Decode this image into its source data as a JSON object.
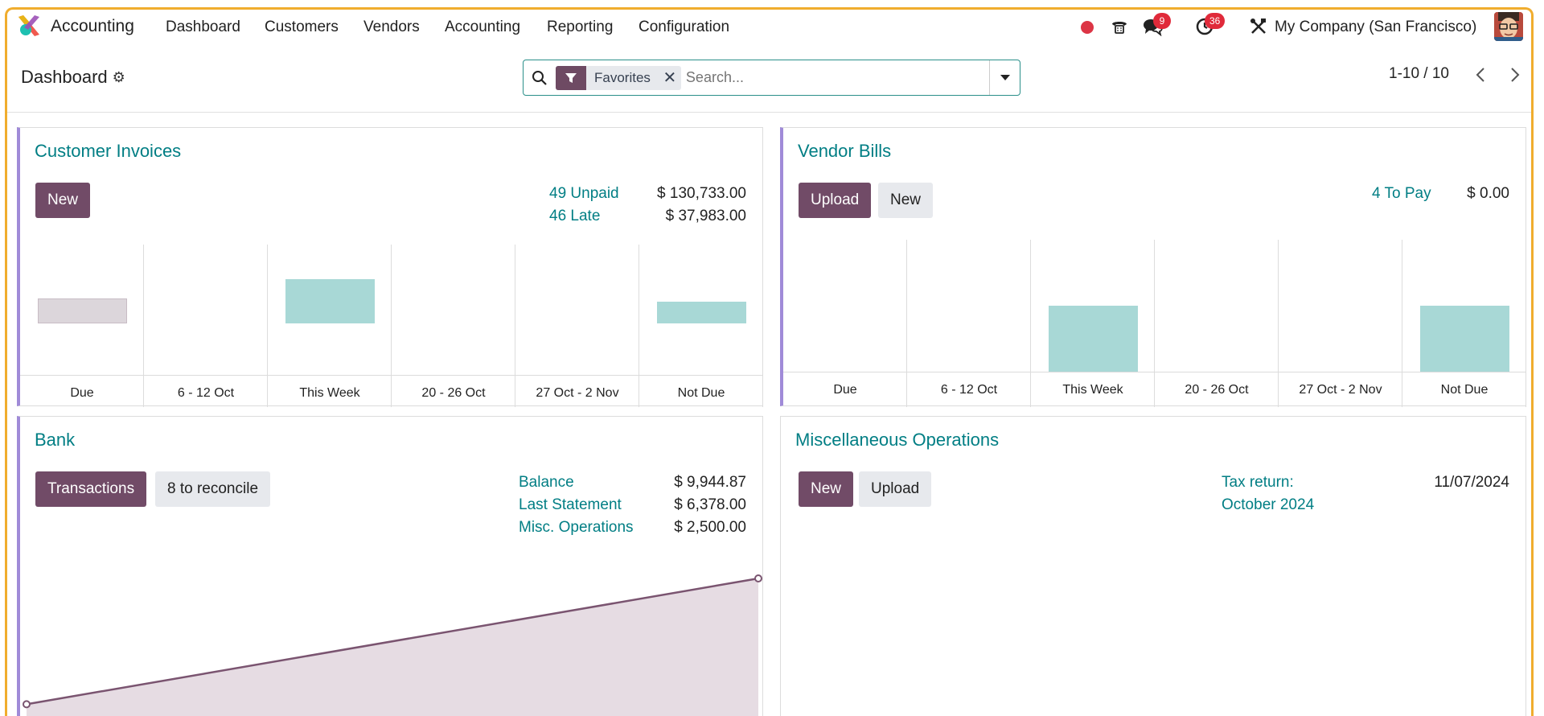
{
  "nav": {
    "app_name": "Accounting",
    "menus": [
      "Dashboard",
      "Customers",
      "Vendors",
      "Accounting",
      "Reporting",
      "Configuration"
    ],
    "messages_badge": "9",
    "activities_badge": "36",
    "company": "My Company (San Francisco)"
  },
  "control": {
    "breadcrumb": "Dashboard",
    "facet_label": "Favorites",
    "search_placeholder": "Search...",
    "pager": "1-10 / 10"
  },
  "colors": {
    "brand": "#714b67",
    "link": "#017e84",
    "future_bar": "#a8d8d6",
    "past_bar": "#dcd6db",
    "card_accent": "#a08bd8",
    "badge": "#e02a3a"
  },
  "customer_invoices": {
    "title": "Customer Invoices",
    "new_label": "New",
    "stats": [
      {
        "label": "49 Unpaid",
        "value": "$ 130,733.00"
      },
      {
        "label": "46 Late",
        "value": "$ 37,983.00"
      }
    ]
  },
  "vendor_bills": {
    "title": "Vendor Bills",
    "upload_label": "Upload",
    "new_label": "New",
    "stats": [
      {
        "label": "4 To Pay",
        "value": "$ 0.00"
      }
    ]
  },
  "bank": {
    "title": "Bank",
    "transactions_label": "Transactions",
    "reconcile_label": "8 to reconcile",
    "stats": [
      {
        "label": "Balance",
        "value": "$ 9,944.87"
      },
      {
        "label": "Last Statement",
        "value": "$ 6,378.00"
      },
      {
        "label": "Misc. Operations",
        "value": "$ 2,500.00"
      }
    ]
  },
  "misc": {
    "title": "Miscellaneous Operations",
    "new_label": "New",
    "upload_label": "Upload",
    "tax_label_line1": "Tax return:",
    "tax_label_line2": "October 2024",
    "tax_date": "11/07/2024"
  },
  "chart_data": [
    {
      "type": "bar",
      "categories": [
        "Due",
        "6 - 12 Oct",
        "This Week",
        "20 - 26 Oct",
        "27 Oct - 2 Nov",
        "Not Due"
      ],
      "series": [
        {
          "values": [
            100,
            0,
            175,
            0,
            0,
            88
          ]
        }
      ],
      "ylim": [
        -200,
        310
      ],
      "colors": [
        "#dcd6db",
        "#a8d8d6",
        "#a8d8d6",
        "#a8d8d6",
        "#a8d8d6",
        "#a8d8d6"
      ]
    },
    {
      "type": "bar",
      "categories": [
        "Due",
        "6 - 12 Oct",
        "This Week",
        "20 - 26 Oct",
        "27 Oct - 2 Nov",
        "Not Due"
      ],
      "series": [
        {
          "values": [
            0,
            0,
            82,
            0,
            0,
            82
          ]
        }
      ],
      "ylim": [
        0,
        164
      ],
      "colors": [
        "#a8d8d6",
        "#a8d8d6",
        "#a8d8d6",
        "#a8d8d6",
        "#a8d8d6",
        "#a8d8d6"
      ]
    },
    {
      "type": "area",
      "x": [
        0,
        1
      ],
      "y": [
        0,
        100
      ],
      "ylim": [
        -10,
        100
      ]
    }
  ]
}
